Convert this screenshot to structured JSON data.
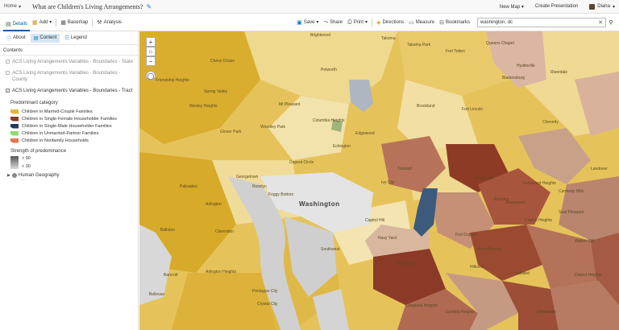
{
  "header": {
    "home_label": "Home",
    "home_caret": "▾",
    "title": "What are Children's Living Arrangements?",
    "new_map_label": "New Map",
    "new_map_caret": "▾",
    "create_presentation_label": "Create Presentation",
    "user_name": "Diana",
    "user_caret": "▾"
  },
  "toolbar": {
    "details": "Details",
    "add": "Add",
    "basemap": "Basemap",
    "analysis": "Analysis",
    "save": "Save",
    "share": "Share",
    "print": "Print",
    "directions": "Directions",
    "measure": "Measure",
    "bookmarks": "Bookmarks",
    "search_value": "washington, dc"
  },
  "sidebar": {
    "tabs": [
      {
        "label": "About",
        "icon": "info-icon"
      },
      {
        "label": "Content",
        "icon": "content-icon"
      },
      {
        "label": "Legend",
        "icon": "legend-icon"
      }
    ],
    "contents_heading": "Contents",
    "layers": [
      {
        "label": "ACS Living Arrangements Variables - Boundaries - State",
        "checked": true,
        "dimmed": true
      },
      {
        "label": "ACS Living Arrangements Variables - Boundaries - County",
        "checked": true,
        "dimmed": true
      },
      {
        "label": "ACS Living Arrangements Variables - Boundaries - Tract",
        "checked": true,
        "dimmed": false
      }
    ],
    "legend": {
      "category_title": "Predominant category",
      "items": [
        {
          "label": "Children in Married-Couple Families",
          "color": "#e3b53a"
        },
        {
          "label": "Children in Single-Female Householder Families",
          "color": "#8e3b26"
        },
        {
          "label": "Children in Single-Male Householder Families",
          "color": "#23395d"
        },
        {
          "label": "Children in Unmarried-Partner Families",
          "color": "#8fdc6f"
        },
        {
          "label": "Children in Nonfamily Households",
          "color": "#e8764a"
        }
      ],
      "strength_title": "Strength of predominance",
      "strength_high": "> 90",
      "strength_low": "< 30"
    },
    "human_geography": "Human Geography",
    "more": "···"
  },
  "map": {
    "zoom_in": "+",
    "zoom_out": "−",
    "labels": [
      "Brightwood",
      "Takoma",
      "Takoma Park",
      "Fort Totten",
      "Queens Chapel",
      "Chevy Chase",
      "Friendship Heights",
      "Hyattsville",
      "Bladensburg",
      "Riverdale",
      "Petworth",
      "Mt Pleasant",
      "Columbia Heights",
      "Woodley Park",
      "Glover Park",
      "Wesley Heights",
      "Palisades",
      "Spring Valley",
      "Georgetown",
      "Foggy Bottom",
      "Washington",
      "Dupont Circle",
      "Trinidad",
      "Ivy City",
      "Eckington",
      "Navy Yard",
      "Capitol Hill",
      "Southwest",
      "Anacostia",
      "Congress Heights",
      "Rosslyn",
      "Arlington",
      "Clarendon",
      "Ballston",
      "Cheverly",
      "Landover",
      "Capitol Heights",
      "Seat Pleasant",
      "Fairmount Heights",
      "Deanwood",
      "Benning",
      "Hillcrest",
      "Walker Mill",
      "Suitland",
      "Forestville",
      "District Heights",
      "Pentagon City",
      "Crystal City",
      "Barcroft",
      "Arlington Heights",
      "Bellevue",
      "Edgewood",
      "Brookland",
      "Fort Lincoln",
      "Carmody Hills",
      "Kenilworth",
      "Garfield Heights",
      "Fort Dupont",
      "Penn Branch"
    ]
  }
}
